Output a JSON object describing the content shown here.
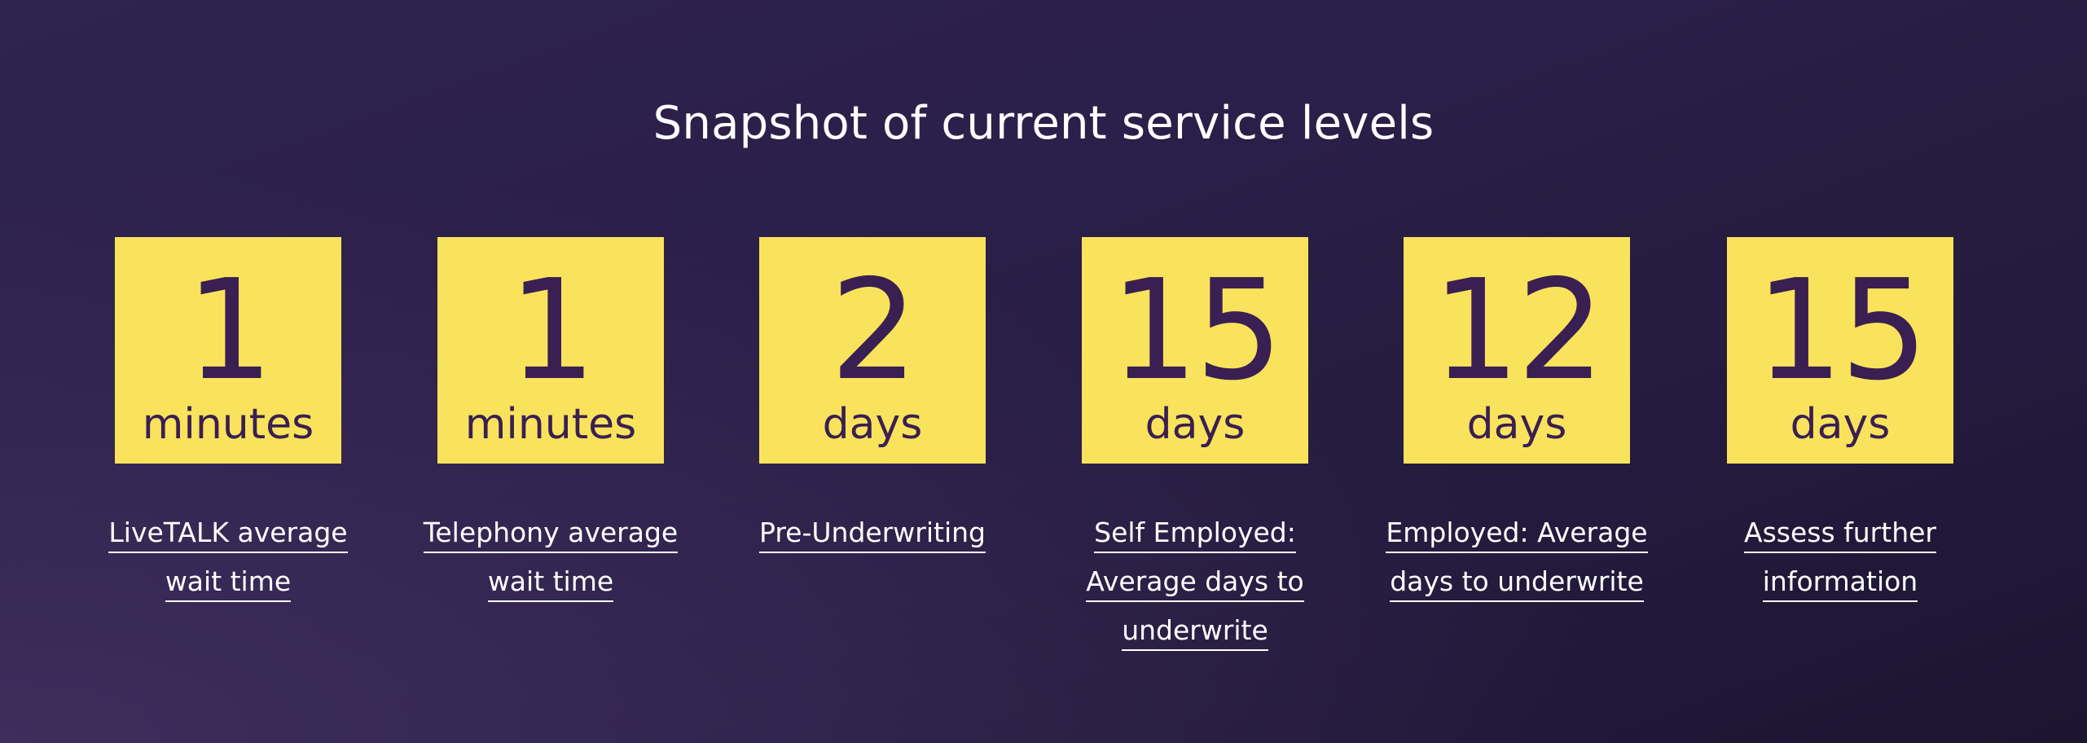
{
  "page": {
    "title": "Snapshot of current service levels"
  },
  "colors": {
    "tile_background": "#f9e35c",
    "tile_text": "#3a1f52",
    "page_background": "#2a1f48",
    "text": "#ffffff"
  },
  "stats": [
    {
      "value": "1",
      "unit": "minutes",
      "caption_lines": [
        "LiveTALK average",
        "wait time"
      ]
    },
    {
      "value": "1",
      "unit": "minutes",
      "caption_lines": [
        "Telephony average",
        "wait time"
      ]
    },
    {
      "value": "2",
      "unit": "days",
      "caption_lines": [
        "Pre-Underwriting"
      ]
    },
    {
      "value": "15",
      "unit": "days",
      "caption_lines": [
        "Self Employed:",
        "Average days to",
        "underwrite"
      ]
    },
    {
      "value": "12",
      "unit": "days",
      "caption_lines": [
        "Employed: Average",
        "days to underwrite"
      ]
    },
    {
      "value": "15",
      "unit": "days",
      "caption_lines": [
        "Assess further",
        "information"
      ]
    }
  ]
}
